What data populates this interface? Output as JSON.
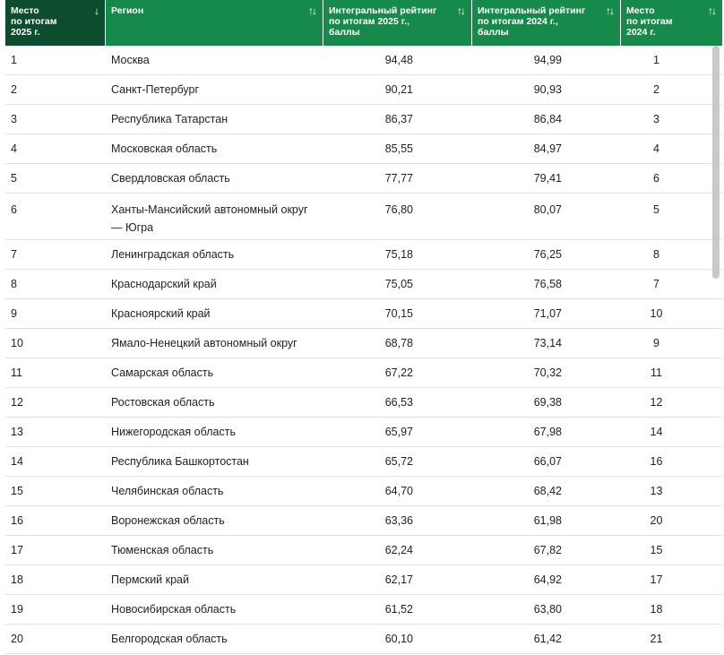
{
  "table": {
    "headers": [
      {
        "label": "Место\nпо итогам\n2025 г.",
        "sort_icon": "↓"
      },
      {
        "label": "Регион",
        "sort_icon": "↑↓"
      },
      {
        "label": "Интегральный рейтинг\nпо итогам 2025 г.,\nбаллы",
        "sort_icon": "↑↓"
      },
      {
        "label": "Интегральный рейтинг\nпо итогам 2024 г.,\nбаллы",
        "sort_icon": "↑↓"
      },
      {
        "label": "Место\nпо итогам\n2024 г.",
        "sort_icon": "↑↓"
      }
    ],
    "rows": [
      {
        "place2025": "1",
        "region": "Москва",
        "score2025": "94,48",
        "score2024": "94,99",
        "place2024": "1"
      },
      {
        "place2025": "2",
        "region": "Санкт-Петербург",
        "score2025": "90,21",
        "score2024": "90,93",
        "place2024": "2"
      },
      {
        "place2025": "3",
        "region": "Республика Татарстан",
        "score2025": "86,37",
        "score2024": "86,84",
        "place2024": "3"
      },
      {
        "place2025": "4",
        "region": "Московская область",
        "score2025": "85,55",
        "score2024": "84,97",
        "place2024": "4"
      },
      {
        "place2025": "5",
        "region": "Свердловская область",
        "score2025": "77,77",
        "score2024": "79,41",
        "place2024": "6"
      },
      {
        "place2025": "6",
        "region": "Ханты-Мансийский автономный округ — Югра",
        "score2025": "76,80",
        "score2024": "80,07",
        "place2024": "5"
      },
      {
        "place2025": "7",
        "region": "Ленинградская область",
        "score2025": "75,18",
        "score2024": "76,25",
        "place2024": "8"
      },
      {
        "place2025": "8",
        "region": "Краснодарский край",
        "score2025": "75,05",
        "score2024": "76,58",
        "place2024": "7"
      },
      {
        "place2025": "9",
        "region": "Красноярский край",
        "score2025": "70,15",
        "score2024": "71,07",
        "place2024": "10"
      },
      {
        "place2025": "10",
        "region": "Ямало-Ненецкий автономный округ",
        "score2025": "68,78",
        "score2024": "73,14",
        "place2024": "9"
      },
      {
        "place2025": "11",
        "region": "Самарская область",
        "score2025": "67,22",
        "score2024": "70,32",
        "place2024": "11"
      },
      {
        "place2025": "12",
        "region": "Ростовская область",
        "score2025": "66,53",
        "score2024": "69,38",
        "place2024": "12"
      },
      {
        "place2025": "13",
        "region": "Нижегородская область",
        "score2025": "65,97",
        "score2024": "67,98",
        "place2024": "14"
      },
      {
        "place2025": "14",
        "region": "Республика Башкортостан",
        "score2025": "65,72",
        "score2024": "66,07",
        "place2024": "16"
      },
      {
        "place2025": "15",
        "region": "Челябинская область",
        "score2025": "64,70",
        "score2024": "68,42",
        "place2024": "13"
      },
      {
        "place2025": "16",
        "region": "Воронежская область",
        "score2025": "63,36",
        "score2024": "61,98",
        "place2024": "20"
      },
      {
        "place2025": "17",
        "region": "Тюменская область",
        "score2025": "62,24",
        "score2024": "67,82",
        "place2024": "15"
      },
      {
        "place2025": "18",
        "region": "Пермский край",
        "score2025": "62,17",
        "score2024": "64,92",
        "place2024": "17"
      },
      {
        "place2025": "19",
        "region": "Новосибирская область",
        "score2025": "61,52",
        "score2024": "63,80",
        "place2024": "18"
      },
      {
        "place2025": "20",
        "region": "Белгородская область",
        "score2025": "60,10",
        "score2024": "61,42",
        "place2024": "21"
      }
    ]
  },
  "colors": {
    "header_bg": "#158a4a",
    "header_active_bg": "#0b4d2c",
    "header_text": "#ffffff",
    "row_border": "#e2e2e2",
    "text": "#222222"
  }
}
